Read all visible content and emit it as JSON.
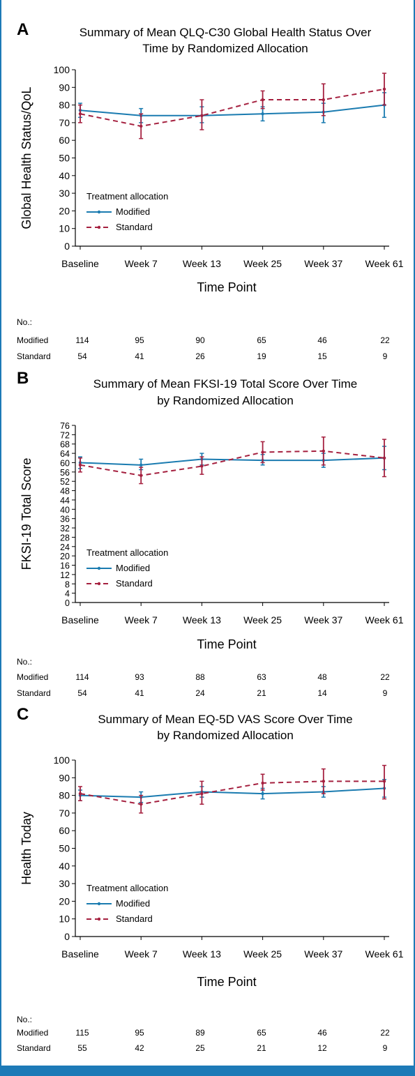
{
  "chart_data": [
    {
      "type": "line",
      "panel_letter": "A",
      "title_lines": [
        "Summary of Mean QLQ-C30 Global Health Status Over",
        "Time by Randomized Allocation"
      ],
      "xlabel": "Time Point",
      "ylabel": "Global Health Status/QoL",
      "categories": [
        "Baseline",
        "Week 7",
        "Week 13",
        "Week 25",
        "Week 37",
        "Week 61"
      ],
      "ylim": [
        0,
        100
      ],
      "yticks": [
        0,
        10,
        20,
        30,
        40,
        50,
        60,
        70,
        80,
        90,
        100
      ],
      "legend_title": "Treatment allocation",
      "series": [
        {
          "name": "Modified",
          "color": "#1a7bb0",
          "dash": "solid",
          "values": [
            77,
            74,
            74,
            75,
            76,
            80
          ],
          "lower": [
            73,
            70,
            70,
            71,
            70,
            73
          ],
          "upper": [
            81,
            78,
            79,
            79,
            81,
            87
          ]
        },
        {
          "name": "Standard",
          "color": "#a5203f",
          "dash": "dashed",
          "values": [
            75,
            68,
            74,
            83,
            83,
            89
          ],
          "lower": [
            70,
            61,
            66,
            78,
            74,
            80
          ],
          "upper": [
            80,
            75,
            83,
            88,
            92,
            98
          ]
        }
      ],
      "counts": {
        "header": "No.:",
        "rows": [
          {
            "label": "Modified",
            "values": [
              "114",
              "95",
              "90",
              "65",
              "46",
              "22"
            ]
          },
          {
            "label": "Standard",
            "values": [
              "54",
              "41",
              "26",
              "19",
              "15",
              "9"
            ]
          }
        ]
      }
    },
    {
      "type": "line",
      "panel_letter": "B",
      "title_lines": [
        "Summary of Mean FKSI-19 Total Score Over Time",
        "by Randomized Allocation"
      ],
      "xlabel": "Time Point",
      "ylabel": "FKSI-19 Total Score",
      "categories": [
        "Baseline",
        "Week 7",
        "Week 13",
        "Week 25",
        "Week 37",
        "Week 61"
      ],
      "ylim": [
        0,
        76
      ],
      "yticks": [
        0,
        4,
        8,
        12,
        16,
        20,
        24,
        28,
        32,
        36,
        40,
        44,
        48,
        52,
        56,
        60,
        64,
        68,
        72,
        76
      ],
      "legend_title": "Treatment allocation",
      "series": [
        {
          "name": "Modified",
          "color": "#1a7bb0",
          "dash": "solid",
          "values": [
            60,
            59,
            61.5,
            61,
            61,
            62
          ],
          "lower": [
            57.5,
            57,
            59,
            59,
            58,
            57
          ],
          "upper": [
            62.5,
            61.5,
            64,
            63.5,
            64,
            67
          ]
        },
        {
          "name": "Standard",
          "color": "#a5203f",
          "dash": "dashed",
          "values": [
            59,
            54.5,
            58.5,
            64.5,
            65,
            62
          ],
          "lower": [
            56,
            51,
            55,
            60,
            59,
            54
          ],
          "upper": [
            62,
            58,
            62.5,
            69,
            71,
            70
          ]
        }
      ],
      "counts": {
        "header": "No.:",
        "rows": [
          {
            "label": "Modified",
            "values": [
              "114",
              "93",
              "88",
              "63",
              "48",
              "22"
            ]
          },
          {
            "label": "Standard",
            "values": [
              "54",
              "41",
              "24",
              "21",
              "14",
              "9"
            ]
          }
        ]
      }
    },
    {
      "type": "line",
      "panel_letter": "C",
      "title_lines": [
        "Summary of Mean EQ-5D VAS Score Over Time",
        "by Randomized Allocation"
      ],
      "xlabel": "Time Point",
      "ylabel": "Health Today",
      "categories": [
        "Baseline",
        "Week 7",
        "Week 13",
        "Week 25",
        "Week 37",
        "Week 61"
      ],
      "ylim": [
        0,
        100
      ],
      "yticks": [
        0,
        10,
        20,
        30,
        40,
        50,
        60,
        70,
        80,
        90,
        100
      ],
      "legend_title": "Treatment allocation",
      "series": [
        {
          "name": "Modified",
          "color": "#1a7bb0",
          "dash": "solid",
          "values": [
            80,
            79,
            82,
            81,
            82,
            84
          ],
          "lower": [
            77,
            76,
            79,
            78,
            79,
            79
          ],
          "upper": [
            83,
            82,
            85,
            84,
            85,
            89
          ]
        },
        {
          "name": "Standard",
          "color": "#a5203f",
          "dash": "dashed",
          "values": [
            81,
            75,
            81,
            87,
            88,
            88
          ],
          "lower": [
            77,
            70,
            75,
            83,
            81,
            78
          ],
          "upper": [
            85,
            80,
            88,
            92,
            95,
            97
          ]
        }
      ],
      "counts": {
        "header": "No.:",
        "rows": [
          {
            "label": "Modified",
            "values": [
              "115",
              "95",
              "89",
              "65",
              "46",
              "22"
            ]
          },
          {
            "label": "Standard",
            "values": [
              "55",
              "42",
              "25",
              "21",
              "12",
              "9"
            ]
          }
        ]
      }
    }
  ]
}
